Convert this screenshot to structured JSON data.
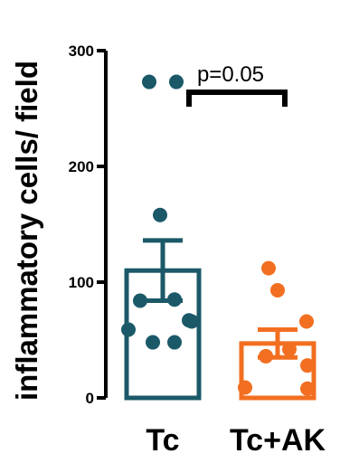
{
  "chart_data": {
    "type": "bar",
    "title": "",
    "xlabel": "",
    "ylabel": "inflammatory cells/ field",
    "ylim": [
      0,
      300
    ],
    "yticks": [
      0,
      100,
      200,
      300
    ],
    "categories": [
      "Tc",
      "Tc+AK"
    ],
    "colors": [
      "#1b5968",
      "#f26f21"
    ],
    "bars": [
      {
        "category": "Tc",
        "mean": 110,
        "error": 26
      },
      {
        "category": "Tc+AK",
        "mean": 47,
        "error": 12
      }
    ],
    "points": [
      {
        "category": "Tc",
        "values": [
          273,
          273,
          158,
          85,
          84,
          67,
          66,
          59,
          48,
          48
        ]
      },
      {
        "category": "Tc+AK",
        "values": [
          112,
          93,
          66,
          42,
          36,
          28,
          9,
          8
        ]
      }
    ],
    "annotation": {
      "text": "p=0.05",
      "from": "Tc",
      "to": "Tc+AK"
    }
  }
}
